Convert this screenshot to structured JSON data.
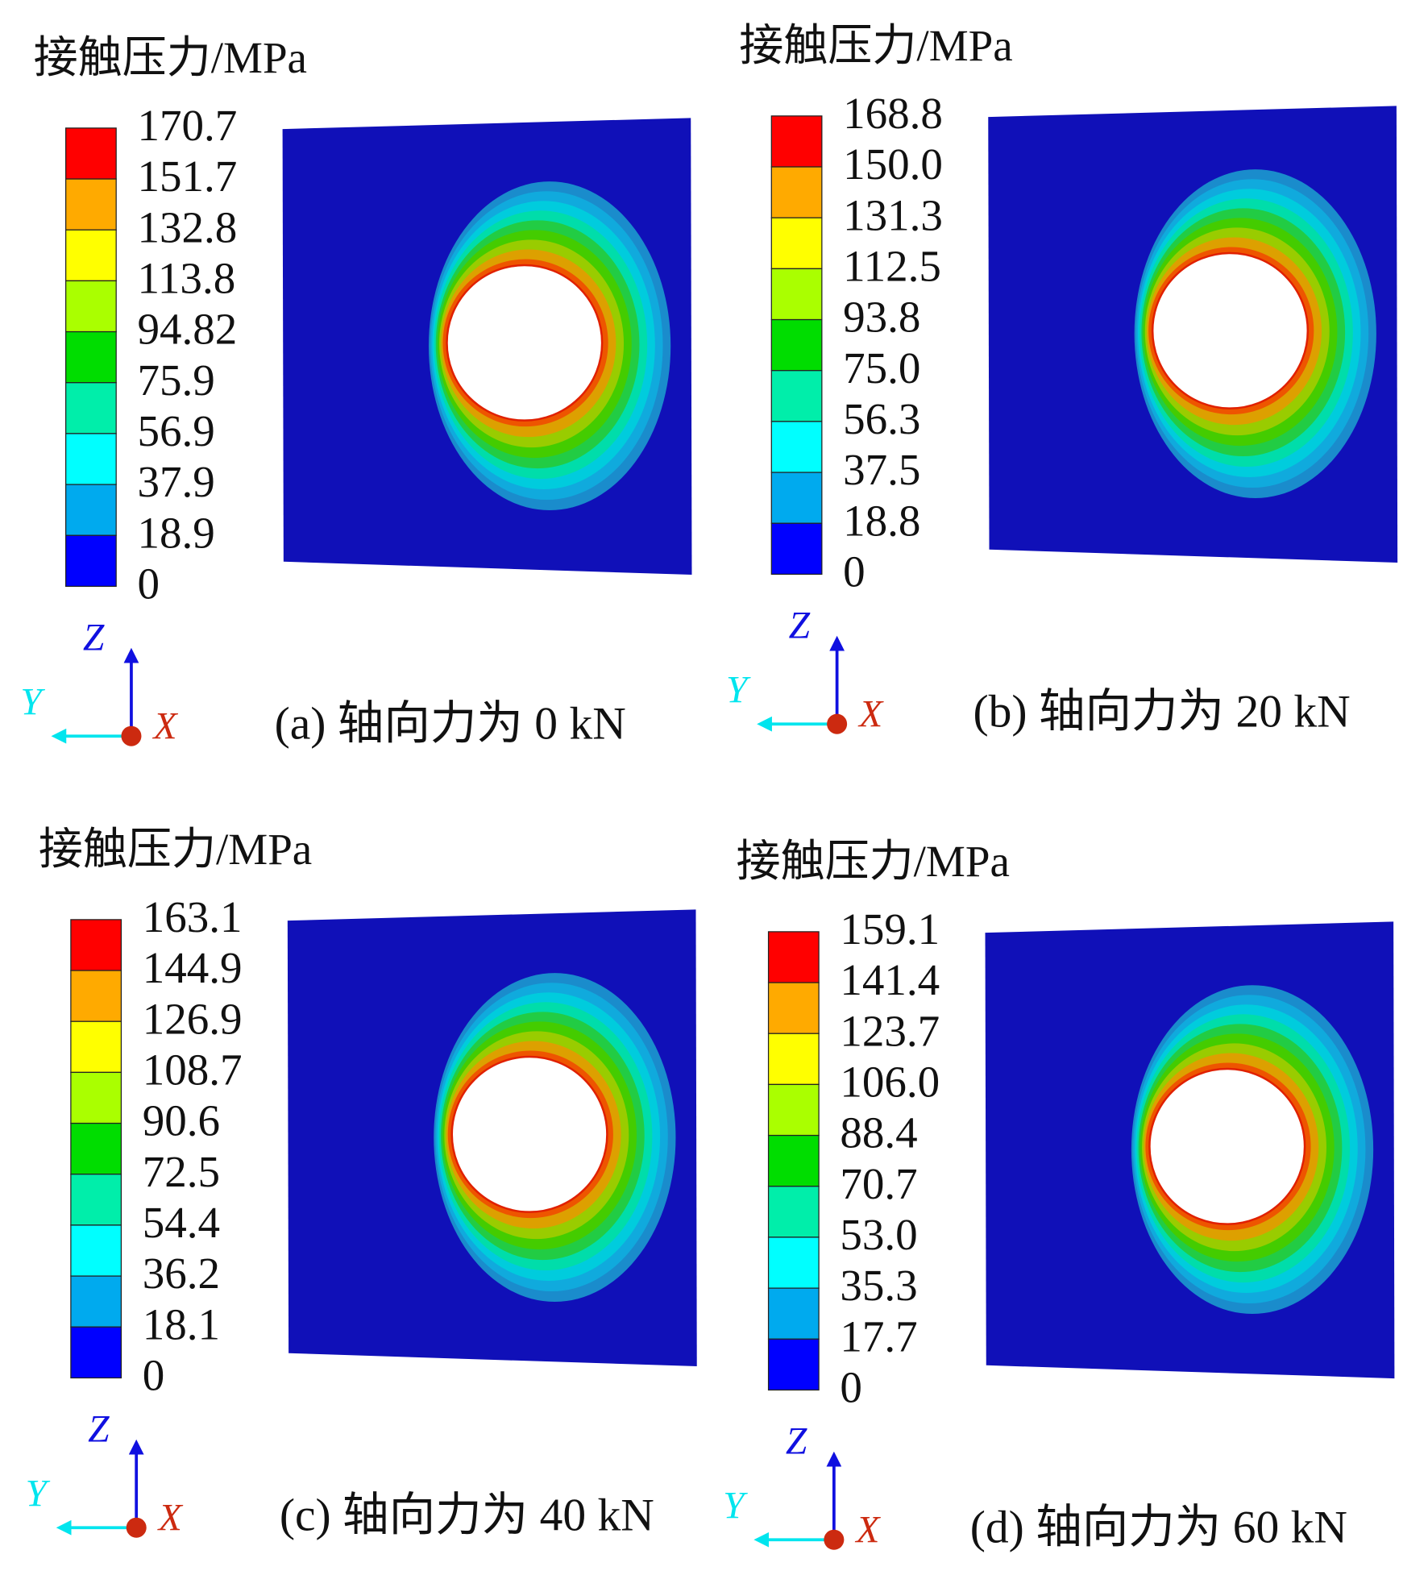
{
  "panels": [
    {
      "legend_title": "接触压力/MPa",
      "legend_labels": [
        "170.7",
        "151.7",
        "132.8",
        "113.8",
        "94.82",
        "75.9",
        "56.9",
        "37.9",
        "18.9",
        "0"
      ],
      "axes": {
        "z": "Z",
        "y": "Y",
        "x": "X"
      },
      "caption": "(a) 轴向力为 0 kN"
    },
    {
      "legend_title": "接触压力/MPa",
      "legend_labels": [
        "168.8",
        "150.0",
        "131.3",
        "112.5",
        "93.8",
        "75.0",
        "56.3",
        "37.5",
        "18.8",
        "0"
      ],
      "axes": {
        "z": "Z",
        "y": "Y",
        "x": "X"
      },
      "caption": "(b) 轴向力为 20 kN"
    },
    {
      "legend_title": "接触压力/MPa",
      "legend_labels": [
        "163.1",
        "144.9",
        "126.9",
        "108.7",
        "90.6",
        "72.5",
        "54.4",
        "36.2",
        "18.1",
        "0"
      ],
      "axes": {
        "z": "Z",
        "y": "Y",
        "x": "X"
      },
      "caption": "(c) 轴向力为 40 kN"
    },
    {
      "legend_title": "接触压力/MPa",
      "legend_labels": [
        "159.1",
        "141.4",
        "123.7",
        "106.0",
        "88.4",
        "70.7",
        "53.0",
        "35.3",
        "17.7",
        "0"
      ],
      "axes": {
        "z": "Z",
        "y": "Y",
        "x": "X"
      },
      "caption": "(d) 轴向力为 60 kN"
    }
  ]
}
